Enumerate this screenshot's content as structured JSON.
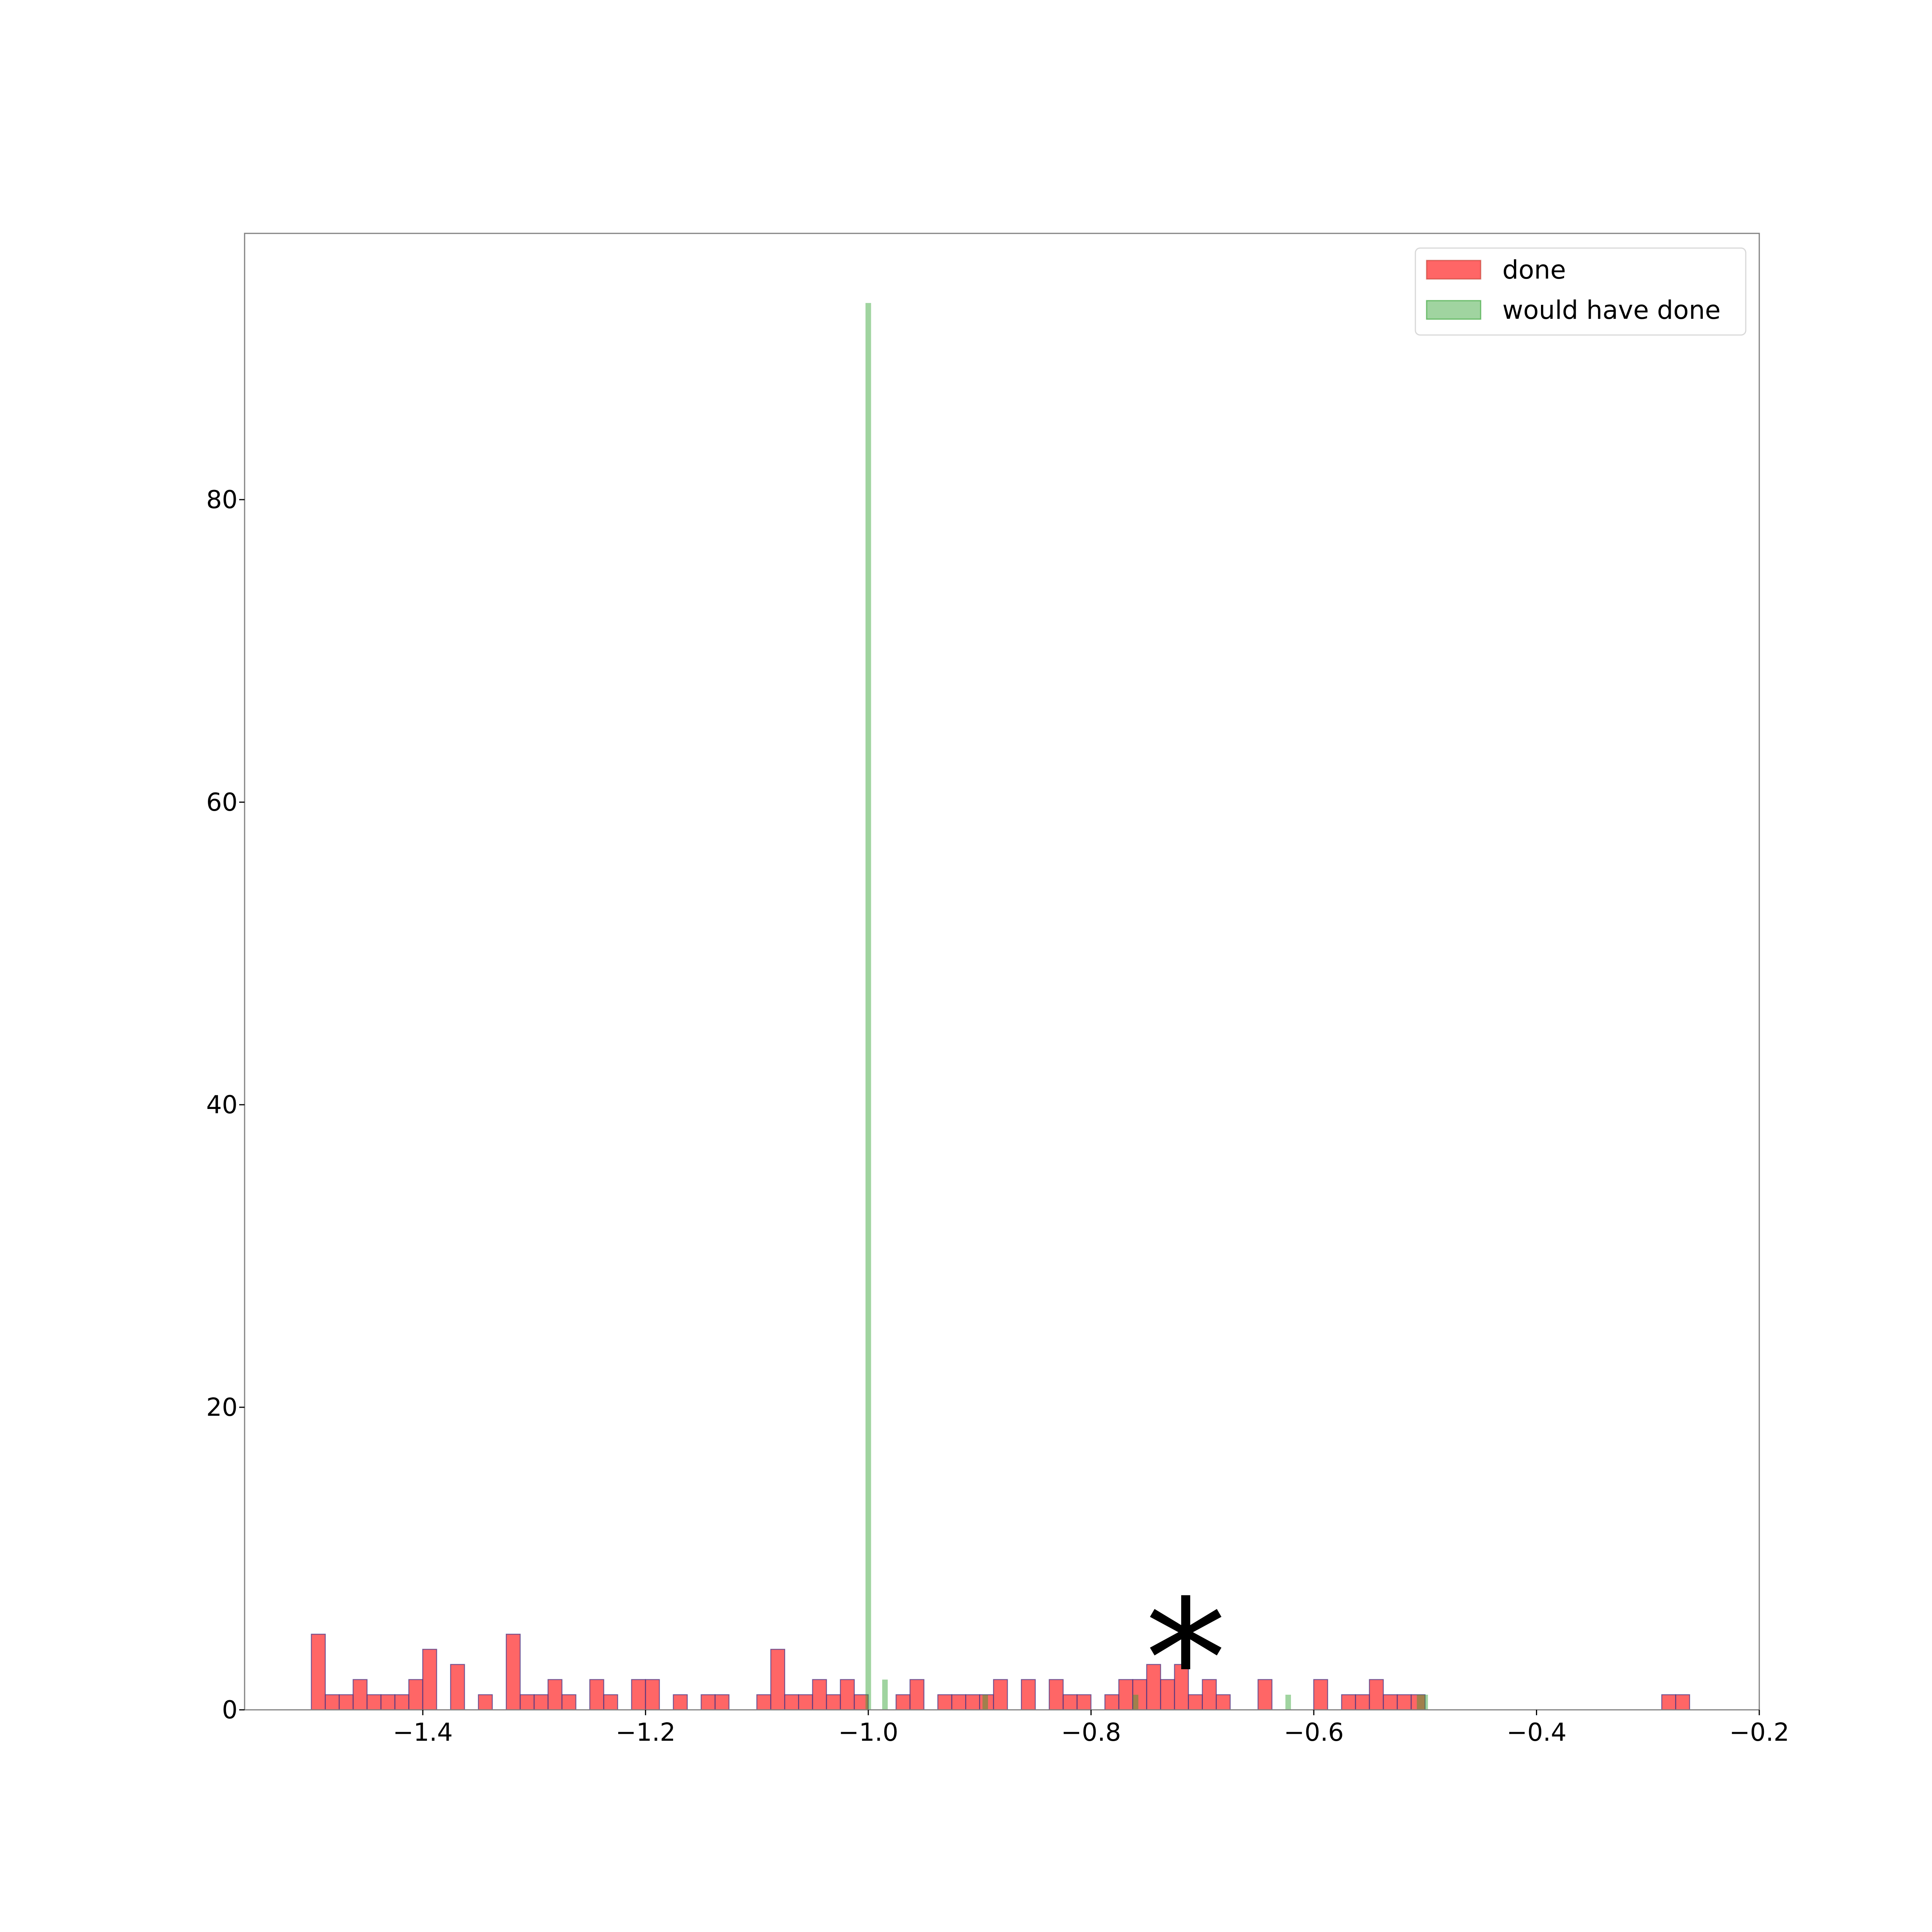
{
  "chart_data": {
    "type": "bar",
    "title": "",
    "xlabel": "",
    "ylabel": "",
    "xlim": [
      -1.56,
      -0.2
    ],
    "ylim": [
      0,
      97.6
    ],
    "bin_width": 0.0125,
    "grid": false,
    "legend_placement": "top-right",
    "annotation": {
      "text": "*",
      "x": -0.715,
      "y": 6
    },
    "x_ticks": [
      -1.4,
      -1.2,
      -1.0,
      -0.8,
      -0.6,
      -0.4,
      -0.2
    ],
    "x_tick_labels": [
      "−1.4",
      "−1.2",
      "−1.0",
      "−0.8",
      "−0.6",
      "−0.4",
      "−0.2"
    ],
    "y_ticks": [
      0,
      20,
      40,
      60,
      80
    ],
    "y_tick_labels": [
      "0",
      "20",
      "40",
      "60",
      "80"
    ],
    "series": [
      {
        "name": "done",
        "color": "#ff0000",
        "bins": [
          {
            "x": -1.4938,
            "y": 5
          },
          {
            "x": -1.4813,
            "y": 1
          },
          {
            "x": -1.4688,
            "y": 1
          },
          {
            "x": -1.4563,
            "y": 2
          },
          {
            "x": -1.4438,
            "y": 1
          },
          {
            "x": -1.4313,
            "y": 1
          },
          {
            "x": -1.4188,
            "y": 1
          },
          {
            "x": -1.4063,
            "y": 2
          },
          {
            "x": -1.3938,
            "y": 4
          },
          {
            "x": -1.3688,
            "y": 3
          },
          {
            "x": -1.3438,
            "y": 1
          },
          {
            "x": -1.3188,
            "y": 5
          },
          {
            "x": -1.3063,
            "y": 1
          },
          {
            "x": -1.2938,
            "y": 1
          },
          {
            "x": -1.2813,
            "y": 2
          },
          {
            "x": -1.2688,
            "y": 1
          },
          {
            "x": -1.2438,
            "y": 2
          },
          {
            "x": -1.2313,
            "y": 1
          },
          {
            "x": -1.2063,
            "y": 2
          },
          {
            "x": -1.1938,
            "y": 2
          },
          {
            "x": -1.1688,
            "y": 1
          },
          {
            "x": -1.1438,
            "y": 1
          },
          {
            "x": -1.1313,
            "y": 1
          },
          {
            "x": -1.0938,
            "y": 1
          },
          {
            "x": -1.0813,
            "y": 4
          },
          {
            "x": -1.0688,
            "y": 1
          },
          {
            "x": -1.0563,
            "y": 1
          },
          {
            "x": -1.0438,
            "y": 2
          },
          {
            "x": -1.0313,
            "y": 1
          },
          {
            "x": -1.0188,
            "y": 2
          },
          {
            "x": -1.0063,
            "y": 1
          },
          {
            "x": -0.9688,
            "y": 1
          },
          {
            "x": -0.9563,
            "y": 2
          },
          {
            "x": -0.9313,
            "y": 1
          },
          {
            "x": -0.9188,
            "y": 1
          },
          {
            "x": -0.9063,
            "y": 1
          },
          {
            "x": -0.8938,
            "y": 1
          },
          {
            "x": -0.8813,
            "y": 2
          },
          {
            "x": -0.8563,
            "y": 2
          },
          {
            "x": -0.8313,
            "y": 2
          },
          {
            "x": -0.8188,
            "y": 1
          },
          {
            "x": -0.8063,
            "y": 1
          },
          {
            "x": -0.7813,
            "y": 1
          },
          {
            "x": -0.7688,
            "y": 2
          },
          {
            "x": -0.7563,
            "y": 2
          },
          {
            "x": -0.7438,
            "y": 3
          },
          {
            "x": -0.7313,
            "y": 2
          },
          {
            "x": -0.7188,
            "y": 3
          },
          {
            "x": -0.7063,
            "y": 1
          },
          {
            "x": -0.6938,
            "y": 2
          },
          {
            "x": -0.6813,
            "y": 1
          },
          {
            "x": -0.6438,
            "y": 2
          },
          {
            "x": -0.5938,
            "y": 2
          },
          {
            "x": -0.5688,
            "y": 1
          },
          {
            "x": -0.5563,
            "y": 1
          },
          {
            "x": -0.5438,
            "y": 2
          },
          {
            "x": -0.5313,
            "y": 1
          },
          {
            "x": -0.5188,
            "y": 1
          },
          {
            "x": -0.5063,
            "y": 1
          },
          {
            "x": -0.2813,
            "y": 1
          },
          {
            "x": -0.2688,
            "y": 1
          }
        ]
      },
      {
        "name": "would have done",
        "color": "#2ca02c",
        "bins": [
          {
            "x": -1.0,
            "y": 93,
            "w": 0.005
          },
          {
            "x": -0.985,
            "y": 2,
            "w": 0.005
          },
          {
            "x": -0.895,
            "y": 1,
            "w": 0.005
          },
          {
            "x": -0.76,
            "y": 1,
            "w": 0.005
          },
          {
            "x": -0.623,
            "y": 1,
            "w": 0.005
          },
          {
            "x": -0.505,
            "y": 1,
            "w": 0.005
          },
          {
            "x": -0.5,
            "y": 1,
            "w": 0.005
          }
        ]
      }
    ]
  }
}
